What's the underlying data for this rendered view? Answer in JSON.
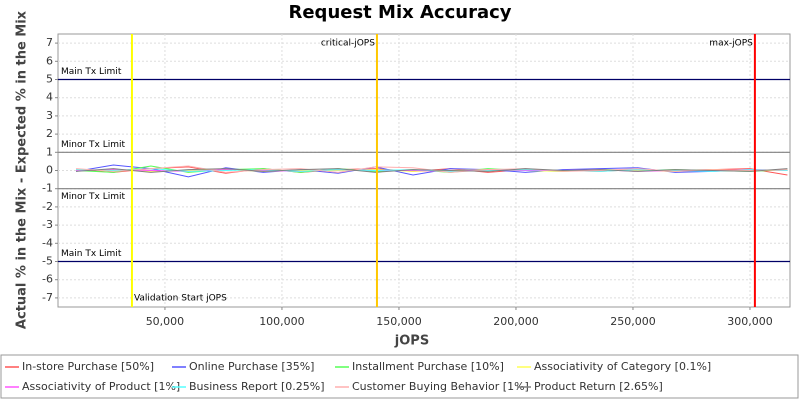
{
  "chart_data": {
    "type": "line",
    "title": "Request Mix Accuracy",
    "x_label": "jOPS",
    "y_label": "Actual % in the Mix - Expected % in the Mix",
    "xlim": [
      4300,
      317100
    ],
    "ylim": [
      -7.5,
      7.5
    ],
    "xticks": [
      {
        "value": 50000,
        "label": "50,000"
      },
      {
        "value": 100000,
        "label": "100,000"
      },
      {
        "value": 150000,
        "label": "150,000"
      },
      {
        "value": 200000,
        "label": "200,000"
      },
      {
        "value": 250000,
        "label": "250,000"
      },
      {
        "value": 300000,
        "label": "300,000"
      }
    ],
    "yticks": [
      -7,
      -6,
      -5,
      -4,
      -3,
      -2,
      -1,
      0,
      1,
      2,
      3,
      4,
      5,
      6,
      7
    ],
    "grid": true,
    "markers": [
      {
        "value": 35900,
        "label": "Validation Start jOPS",
        "color": "#ffff00",
        "label_at": "bottom"
      },
      {
        "value": 140600,
        "label": "critical-jOPS",
        "color": "#ffc800",
        "label_at": "top"
      },
      {
        "value": 302100,
        "label": "max-jOPS",
        "color": "#ff0000",
        "label_at": "top"
      }
    ],
    "hlines": [
      {
        "value": 5,
        "label": "Main Tx Limit",
        "color": "#000066",
        "label_at": "above"
      },
      {
        "value": 1,
        "label": "Minor Tx Limit",
        "color": "#808080",
        "label_at": "above"
      },
      {
        "value": -1,
        "label": "Minor Tx Limit",
        "color": "#808080",
        "label_at": "below"
      },
      {
        "value": -5,
        "label": "Main Tx Limit",
        "color": "#000066",
        "label_at": "above"
      }
    ],
    "x": [
      12000,
      28000,
      44000,
      60000,
      76000,
      92000,
      108000,
      124000,
      140000,
      156000,
      172000,
      188000,
      204000,
      220000,
      236000,
      252000,
      268000,
      284000,
      300000,
      316000
    ],
    "series": [
      {
        "name": "In-store Purchase [50%]",
        "color": "#ff5555",
        "values": [
          0.05,
          -0.1,
          0.1,
          0.2,
          -0.15,
          0.1,
          -0.1,
          0.05,
          0.1,
          -0.05,
          0.1,
          -0.1,
          0.05,
          0,
          -0.05,
          0.05,
          0,
          0.05,
          0.1,
          -0.25
        ]
      },
      {
        "name": "Online Purchase [35%]",
        "color": "#5555ff",
        "values": [
          -0.05,
          0.3,
          0.1,
          -0.35,
          0.15,
          -0.1,
          0.05,
          -0.15,
          0.2,
          -0.25,
          0.1,
          0.05,
          -0.1,
          0.05,
          0.1,
          0.15,
          -0.1,
          -0.05,
          0.05,
          0
        ]
      },
      {
        "name": "Installment Purchase [10%]",
        "color": "#55ff55",
        "values": [
          0,
          -0.1,
          0.25,
          -0.1,
          0.05,
          0.1,
          -0.1,
          0.1,
          -0.05,
          0.05,
          -0.1,
          0.1,
          0,
          -0.05,
          0.05,
          0,
          0.05,
          0,
          -0.05,
          0.05
        ]
      },
      {
        "name": "Associativity of Category [0.1%]",
        "color": "#ffff55",
        "values": [
          0,
          0.05,
          -0.05,
          0,
          0.05,
          -0.05,
          0,
          0,
          0.05,
          -0.05,
          0,
          0.05,
          0,
          -0.05,
          0.05,
          0,
          -0.05,
          0.05,
          0,
          0
        ]
      },
      {
        "name": "Associativity of Product [1%]",
        "color": "#ff55ff",
        "values": [
          0,
          0.05,
          0,
          -0.05,
          0.05,
          0,
          -0.05,
          0.05,
          0,
          0,
          -0.05,
          0.05,
          0,
          0,
          0.05,
          -0.05,
          0,
          0,
          0.05,
          0
        ]
      },
      {
        "name": "Business Report [0.25%]",
        "color": "#55ffff",
        "values": [
          0.05,
          0,
          0.1,
          -0.05,
          0,
          0.05,
          -0.05,
          0.05,
          0,
          0.05,
          -0.05,
          0,
          0.05,
          0,
          -0.05,
          0.05,
          0,
          -0.05,
          0.05,
          0
        ]
      },
      {
        "name": "Customer Buying Behavior [1%]",
        "color": "#ffafaf",
        "values": [
          0.1,
          -0.05,
          0.1,
          0.25,
          -0.1,
          0.05,
          0.1,
          -0.1,
          0.2,
          0.15,
          -0.1,
          0.05,
          0.1,
          -0.05,
          0,
          0.1,
          -0.05,
          0.05,
          0,
          0.05
        ]
      },
      {
        "name": "Product Return [2.65%]",
        "color": "#808080",
        "values": [
          -0.05,
          0.1,
          -0.1,
          0.05,
          0.1,
          -0.05,
          0.05,
          0.1,
          -0.1,
          0.05,
          0,
          -0.05,
          0.1,
          0,
          0.05,
          -0.05,
          0.05,
          0,
          -0.05,
          0.1
        ]
      }
    ]
  }
}
